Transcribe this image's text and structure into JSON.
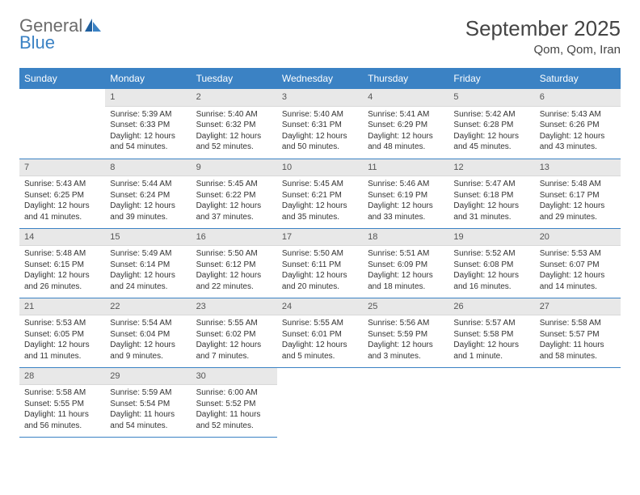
{
  "logo": {
    "text1": "General",
    "text2": "Blue"
  },
  "title": "September 2025",
  "location": "Qom, Qom, Iran",
  "colors": {
    "header_bg": "#3b82c4",
    "header_fg": "#ffffff",
    "daynum_bg": "#e8e8e8",
    "row_border": "#3b82c4",
    "text": "#333333",
    "logo_gray": "#6b6b6b",
    "logo_blue": "#3b82c4"
  },
  "weekdays": [
    "Sunday",
    "Monday",
    "Tuesday",
    "Wednesday",
    "Thursday",
    "Friday",
    "Saturday"
  ],
  "layout": {
    "type": "calendar",
    "columns": 7,
    "rows": 5,
    "first_weekday_offset": 1,
    "days_in_month": 30
  },
  "days": {
    "1": {
      "sunrise": "Sunrise: 5:39 AM",
      "sunset": "Sunset: 6:33 PM",
      "daylight": "Daylight: 12 hours and 54 minutes."
    },
    "2": {
      "sunrise": "Sunrise: 5:40 AM",
      "sunset": "Sunset: 6:32 PM",
      "daylight": "Daylight: 12 hours and 52 minutes."
    },
    "3": {
      "sunrise": "Sunrise: 5:40 AM",
      "sunset": "Sunset: 6:31 PM",
      "daylight": "Daylight: 12 hours and 50 minutes."
    },
    "4": {
      "sunrise": "Sunrise: 5:41 AM",
      "sunset": "Sunset: 6:29 PM",
      "daylight": "Daylight: 12 hours and 48 minutes."
    },
    "5": {
      "sunrise": "Sunrise: 5:42 AM",
      "sunset": "Sunset: 6:28 PM",
      "daylight": "Daylight: 12 hours and 45 minutes."
    },
    "6": {
      "sunrise": "Sunrise: 5:43 AM",
      "sunset": "Sunset: 6:26 PM",
      "daylight": "Daylight: 12 hours and 43 minutes."
    },
    "7": {
      "sunrise": "Sunrise: 5:43 AM",
      "sunset": "Sunset: 6:25 PM",
      "daylight": "Daylight: 12 hours and 41 minutes."
    },
    "8": {
      "sunrise": "Sunrise: 5:44 AM",
      "sunset": "Sunset: 6:24 PM",
      "daylight": "Daylight: 12 hours and 39 minutes."
    },
    "9": {
      "sunrise": "Sunrise: 5:45 AM",
      "sunset": "Sunset: 6:22 PM",
      "daylight": "Daylight: 12 hours and 37 minutes."
    },
    "10": {
      "sunrise": "Sunrise: 5:45 AM",
      "sunset": "Sunset: 6:21 PM",
      "daylight": "Daylight: 12 hours and 35 minutes."
    },
    "11": {
      "sunrise": "Sunrise: 5:46 AM",
      "sunset": "Sunset: 6:19 PM",
      "daylight": "Daylight: 12 hours and 33 minutes."
    },
    "12": {
      "sunrise": "Sunrise: 5:47 AM",
      "sunset": "Sunset: 6:18 PM",
      "daylight": "Daylight: 12 hours and 31 minutes."
    },
    "13": {
      "sunrise": "Sunrise: 5:48 AM",
      "sunset": "Sunset: 6:17 PM",
      "daylight": "Daylight: 12 hours and 29 minutes."
    },
    "14": {
      "sunrise": "Sunrise: 5:48 AM",
      "sunset": "Sunset: 6:15 PM",
      "daylight": "Daylight: 12 hours and 26 minutes."
    },
    "15": {
      "sunrise": "Sunrise: 5:49 AM",
      "sunset": "Sunset: 6:14 PM",
      "daylight": "Daylight: 12 hours and 24 minutes."
    },
    "16": {
      "sunrise": "Sunrise: 5:50 AM",
      "sunset": "Sunset: 6:12 PM",
      "daylight": "Daylight: 12 hours and 22 minutes."
    },
    "17": {
      "sunrise": "Sunrise: 5:50 AM",
      "sunset": "Sunset: 6:11 PM",
      "daylight": "Daylight: 12 hours and 20 minutes."
    },
    "18": {
      "sunrise": "Sunrise: 5:51 AM",
      "sunset": "Sunset: 6:09 PM",
      "daylight": "Daylight: 12 hours and 18 minutes."
    },
    "19": {
      "sunrise": "Sunrise: 5:52 AM",
      "sunset": "Sunset: 6:08 PM",
      "daylight": "Daylight: 12 hours and 16 minutes."
    },
    "20": {
      "sunrise": "Sunrise: 5:53 AM",
      "sunset": "Sunset: 6:07 PM",
      "daylight": "Daylight: 12 hours and 14 minutes."
    },
    "21": {
      "sunrise": "Sunrise: 5:53 AM",
      "sunset": "Sunset: 6:05 PM",
      "daylight": "Daylight: 12 hours and 11 minutes."
    },
    "22": {
      "sunrise": "Sunrise: 5:54 AM",
      "sunset": "Sunset: 6:04 PM",
      "daylight": "Daylight: 12 hours and 9 minutes."
    },
    "23": {
      "sunrise": "Sunrise: 5:55 AM",
      "sunset": "Sunset: 6:02 PM",
      "daylight": "Daylight: 12 hours and 7 minutes."
    },
    "24": {
      "sunrise": "Sunrise: 5:55 AM",
      "sunset": "Sunset: 6:01 PM",
      "daylight": "Daylight: 12 hours and 5 minutes."
    },
    "25": {
      "sunrise": "Sunrise: 5:56 AM",
      "sunset": "Sunset: 5:59 PM",
      "daylight": "Daylight: 12 hours and 3 minutes."
    },
    "26": {
      "sunrise": "Sunrise: 5:57 AM",
      "sunset": "Sunset: 5:58 PM",
      "daylight": "Daylight: 12 hours and 1 minute."
    },
    "27": {
      "sunrise": "Sunrise: 5:58 AM",
      "sunset": "Sunset: 5:57 PM",
      "daylight": "Daylight: 11 hours and 58 minutes."
    },
    "28": {
      "sunrise": "Sunrise: 5:58 AM",
      "sunset": "Sunset: 5:55 PM",
      "daylight": "Daylight: 11 hours and 56 minutes."
    },
    "29": {
      "sunrise": "Sunrise: 5:59 AM",
      "sunset": "Sunset: 5:54 PM",
      "daylight": "Daylight: 11 hours and 54 minutes."
    },
    "30": {
      "sunrise": "Sunrise: 6:00 AM",
      "sunset": "Sunset: 5:52 PM",
      "daylight": "Daylight: 11 hours and 52 minutes."
    }
  }
}
